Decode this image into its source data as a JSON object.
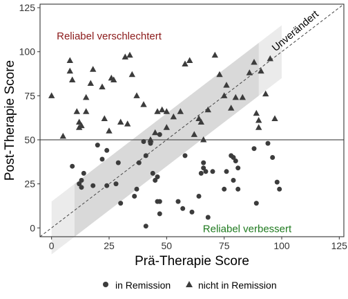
{
  "chart_data": {
    "type": "scatter",
    "xlabel": "Prä-Therapie Score",
    "ylabel": "Post-Therapie Score",
    "xlim": [
      -5,
      127
    ],
    "ylim": [
      -5,
      127
    ],
    "xticks": [
      0,
      25,
      50,
      75,
      100,
      125
    ],
    "yticks": [
      0,
      25,
      50,
      75,
      100,
      125
    ],
    "cutoff_y": 50,
    "reliable_change_band": {
      "low_offset": -15,
      "high_offset": 15,
      "x_range": [
        0,
        100
      ],
      "inner_x_range": [
        10,
        90
      ]
    },
    "identity_line_label": "Unverändert",
    "annotations": [
      {
        "text": "Reliabel verschlechtert",
        "x": 25,
        "y": 109,
        "color": "#8b1a1a"
      },
      {
        "text": "Reliabel verbessert",
        "x": 85,
        "y": -0.5,
        "color": "#1f7a1f"
      }
    ],
    "legend": {
      "position": "bottom",
      "entries": [
        "in Remission",
        "nicht in Remission"
      ]
    },
    "series": [
      {
        "name": "in Remission",
        "marker": "circle",
        "points": [
          [
            9,
            35
          ],
          [
            12,
            25
          ],
          [
            13,
            27
          ],
          [
            13,
            23
          ],
          [
            14,
            31
          ],
          [
            18,
            24
          ],
          [
            20,
            47
          ],
          [
            22,
            39
          ],
          [
            24,
            44
          ],
          [
            24,
            24
          ],
          [
            28,
            25
          ],
          [
            29,
            37
          ],
          [
            30,
            14
          ],
          [
            36,
            18
          ],
          [
            37,
            22
          ],
          [
            38,
            37
          ],
          [
            40,
            49
          ],
          [
            41,
            41
          ],
          [
            41,
            1
          ],
          [
            43,
            48
          ],
          [
            44,
            31
          ],
          [
            45,
            27
          ],
          [
            46,
            29
          ],
          [
            46,
            15
          ],
          [
            47,
            15
          ],
          [
            47,
            8
          ],
          [
            47,
            53
          ],
          [
            55,
            15
          ],
          [
            57,
            11
          ],
          [
            58,
            41
          ],
          [
            61,
            9
          ],
          [
            64,
            18
          ],
          [
            65,
            31
          ],
          [
            66,
            37
          ],
          [
            66,
            34
          ],
          [
            67,
            32
          ],
          [
            68,
            6
          ],
          [
            70,
            32
          ],
          [
            75,
            22
          ],
          [
            76,
            32
          ],
          [
            78,
            41
          ],
          [
            79,
            40
          ],
          [
            79,
            27
          ],
          [
            80,
            38
          ],
          [
            81,
            22
          ],
          [
            81,
            34
          ],
          [
            88,
            45
          ],
          [
            89,
            14
          ],
          [
            94,
            48
          ],
          [
            96,
            40
          ],
          [
            98,
            26
          ],
          [
            99,
            22
          ]
        ]
      },
      {
        "name": "nicht in Remission",
        "marker": "triangle",
        "points": [
          [
            0,
            75
          ],
          [
            5,
            52
          ],
          [
            8,
            95
          ],
          [
            8,
            89
          ],
          [
            9,
            84
          ],
          [
            11,
            66
          ],
          [
            12,
            60
          ],
          [
            12,
            57
          ],
          [
            13,
            58
          ],
          [
            15,
            66
          ],
          [
            15,
            74
          ],
          [
            17,
            82
          ],
          [
            18,
            90
          ],
          [
            22,
            80
          ],
          [
            23,
            62
          ],
          [
            25,
            55
          ],
          [
            26,
            85
          ],
          [
            27,
            84
          ],
          [
            30,
            60
          ],
          [
            32,
            97
          ],
          [
            33,
            59
          ],
          [
            34,
            98
          ],
          [
            35,
            87
          ],
          [
            37,
            75
          ],
          [
            40,
            70
          ],
          [
            43,
            50
          ],
          [
            45,
            54
          ],
          [
            46,
            66
          ],
          [
            48,
            67
          ],
          [
            50,
            66
          ],
          [
            50,
            57
          ],
          [
            53,
            63
          ],
          [
            56,
            66
          ],
          [
            58,
            93
          ],
          [
            60,
            95
          ],
          [
            62,
            53
          ],
          [
            64,
            62
          ],
          [
            65,
            60
          ],
          [
            66,
            50
          ],
          [
            68,
            67
          ],
          [
            71,
            98
          ],
          [
            73,
            87
          ],
          [
            75,
            75
          ],
          [
            76,
            81
          ],
          [
            78,
            68
          ],
          [
            80,
            74
          ],
          [
            83,
            74
          ],
          [
            86,
            88
          ],
          [
            88,
            94
          ],
          [
            89,
            65
          ],
          [
            90,
            61
          ],
          [
            90,
            57
          ],
          [
            91,
            89
          ],
          [
            93,
            76
          ],
          [
            95,
            96
          ],
          [
            97,
            62
          ]
        ]
      }
    ]
  }
}
